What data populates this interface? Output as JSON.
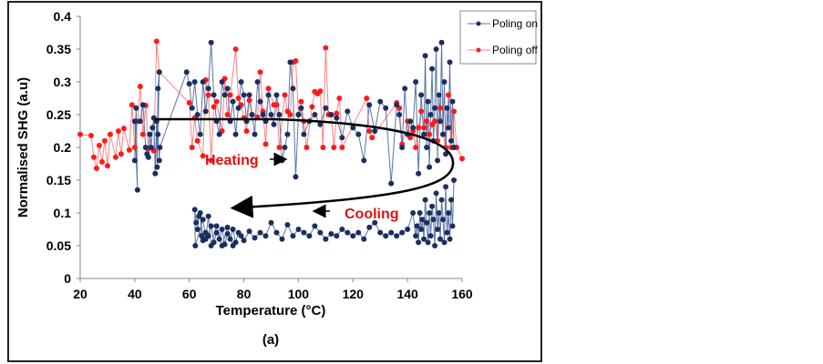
{
  "chart_data": {
    "type": "line",
    "title": "",
    "caption": "(a)",
    "xlabel": "Temperature (°C)",
    "ylabel": "Normalised SHG (a.u)",
    "xlim": [
      20,
      160
    ],
    "ylim": [
      0,
      0.4
    ],
    "xticks": [
      "20",
      "40",
      "60",
      "80",
      "100",
      "120",
      "140",
      "160"
    ],
    "yticks": [
      "0",
      "0.05",
      "0.1",
      "0.15",
      "0.2",
      "0.25",
      "0.3",
      "0.35",
      "0.4"
    ],
    "grid": false,
    "legend_position": "top-right",
    "annotations": {
      "heating": "Heating",
      "cooling": "Cooling"
    },
    "series": [
      {
        "name": "Poling on",
        "color": "#1b2f5e",
        "line_color": "#5a74a8",
        "heating": [
          [
            40,
            0.18
          ],
          [
            40.5,
            0.26
          ],
          [
            41,
            0.135
          ],
          [
            40,
            0.24
          ],
          [
            42,
            0.24
          ],
          [
            43,
            0.265
          ],
          [
            44,
            0.2
          ],
          [
            44.5,
            0.19
          ],
          [
            45,
            0.185
          ],
          [
            45.5,
            0.22
          ],
          [
            46,
            0.2
          ],
          [
            46.5,
            0.23
          ],
          [
            47,
            0.245
          ],
          [
            47.5,
            0.16
          ],
          [
            48,
            0.24
          ],
          [
            48.2,
            0.17
          ],
          [
            48.5,
            0.29
          ],
          [
            49,
            0.315
          ],
          [
            48.5,
            0.22
          ],
          [
            49,
            0.18
          ],
          [
            49.2,
            0.2
          ],
          [
            59,
            0.315
          ],
          [
            60,
            0.297
          ],
          [
            61,
            0.26
          ],
          [
            62,
            0.3
          ],
          [
            63,
            0.25
          ],
          [
            64,
            0.22
          ],
          [
            65,
            0.3
          ],
          [
            66,
            0.255
          ],
          [
            67,
            0.29
          ],
          [
            68,
            0.36
          ],
          [
            69,
            0.28
          ],
          [
            70,
            0.24
          ],
          [
            71,
            0.22
          ],
          [
            72,
            0.3
          ],
          [
            73,
            0.28
          ],
          [
            74,
            0.29
          ],
          [
            75,
            0.24
          ],
          [
            76,
            0.27
          ],
          [
            77,
            0.22
          ],
          [
            78,
            0.26
          ],
          [
            79,
            0.3
          ],
          [
            80,
            0.28
          ],
          [
            81,
            0.24
          ],
          [
            82,
            0.28
          ],
          [
            83,
            0.25
          ],
          [
            84,
            0.22
          ],
          [
            85,
            0.3
          ],
          [
            86,
            0.27
          ],
          [
            87,
            0.25
          ],
          [
            88,
            0.24
          ],
          [
            89,
            0.28
          ],
          [
            90,
            0.25
          ],
          [
            91,
            0.235
          ],
          [
            92,
            0.28
          ],
          [
            93,
            0.25
          ],
          [
            94,
            0.18
          ],
          [
            95,
            0.2
          ],
          [
            96,
            0.22
          ],
          [
            97,
            0.33
          ],
          [
            98,
            0.29
          ],
          [
            99,
            0.155
          ],
          [
            100,
            0.25
          ],
          [
            101,
            0.26
          ],
          [
            102,
            0.22
          ],
          [
            104,
            0.24
          ],
          [
            106,
            0.25
          ],
          [
            108,
            0.235
          ],
          [
            110,
            0.26
          ],
          [
            112,
            0.25
          ],
          [
            114,
            0.245
          ],
          [
            116,
            0.215
          ],
          [
            118,
            0.255
          ],
          [
            120,
            0.23
          ],
          [
            122,
            0.22
          ],
          [
            124,
            0.18
          ],
          [
            126,
            0.265
          ],
          [
            128,
            0.225
          ],
          [
            130,
            0.27
          ],
          [
            132,
            0.26
          ],
          [
            134,
            0.145
          ],
          [
            136,
            0.265
          ],
          [
            137,
            0.25
          ],
          [
            138,
            0.2
          ],
          [
            139,
            0.29
          ],
          [
            140,
            0.22
          ],
          [
            141,
            0.24
          ],
          [
            142,
            0.23
          ],
          [
            143,
            0.3
          ],
          [
            144,
            0.16
          ],
          [
            145,
            0.28
          ],
          [
            146,
            0.22
          ],
          [
            146.5,
            0.34
          ],
          [
            147,
            0.2
          ],
          [
            147.5,
            0.27
          ],
          [
            148,
            0.17
          ],
          [
            148.5,
            0.25
          ],
          [
            149,
            0.32
          ],
          [
            149.5,
            0.21
          ],
          [
            150,
            0.26
          ],
          [
            150.5,
            0.35
          ],
          [
            151,
            0.18
          ],
          [
            151.5,
            0.28
          ],
          [
            152,
            0.24
          ],
          [
            152.5,
            0.36
          ],
          [
            153,
            0.22
          ],
          [
            153.5,
            0.3
          ],
          [
            154,
            0.19
          ],
          [
            154.5,
            0.26
          ],
          [
            155,
            0.23
          ],
          [
            155.5,
            0.33
          ],
          [
            156,
            0.21
          ],
          [
            156.5,
            0.27
          ],
          [
            157,
            0.2
          ]
        ],
        "cooling": [
          [
            157,
            0.15
          ],
          [
            156.5,
            0.08
          ],
          [
            156,
            0.12
          ],
          [
            155.5,
            0.06
          ],
          [
            155,
            0.1
          ],
          [
            154.5,
            0.07
          ],
          [
            154,
            0.14
          ],
          [
            153.5,
            0.055
          ],
          [
            153,
            0.09
          ],
          [
            152.5,
            0.12
          ],
          [
            152,
            0.06
          ],
          [
            151.5,
            0.1
          ],
          [
            151,
            0.075
          ],
          [
            150.5,
            0.13
          ],
          [
            150,
            0.05
          ],
          [
            149.5,
            0.09
          ],
          [
            149,
            0.11
          ],
          [
            148.5,
            0.065
          ],
          [
            148,
            0.1
          ],
          [
            147.5,
            0.055
          ],
          [
            147,
            0.085
          ],
          [
            146.5,
            0.12
          ],
          [
            146,
            0.06
          ],
          [
            145.5,
            0.09
          ],
          [
            145,
            0.075
          ],
          [
            144.5,
            0.1
          ],
          [
            144,
            0.055
          ],
          [
            143.5,
            0.08
          ],
          [
            143,
            0.065
          ],
          [
            142,
            0.1
          ],
          [
            140,
            0.075
          ],
          [
            138,
            0.07
          ],
          [
            136,
            0.065
          ],
          [
            134,
            0.07
          ],
          [
            132,
            0.065
          ],
          [
            130,
            0.07
          ],
          [
            128,
            0.085
          ],
          [
            126,
            0.078
          ],
          [
            124,
            0.06
          ],
          [
            122,
            0.07
          ],
          [
            120,
            0.065
          ],
          [
            118,
            0.07
          ],
          [
            116,
            0.075
          ],
          [
            114,
            0.065
          ],
          [
            112,
            0.068
          ],
          [
            110,
            0.06
          ],
          [
            108,
            0.07
          ],
          [
            106,
            0.08
          ],
          [
            104,
            0.065
          ],
          [
            102,
            0.07
          ],
          [
            100,
            0.075
          ],
          [
            98,
            0.065
          ],
          [
            96,
            0.082
          ],
          [
            94,
            0.06
          ],
          [
            92,
            0.07
          ],
          [
            90,
            0.085
          ],
          [
            88,
            0.065
          ],
          [
            86,
            0.07
          ],
          [
            84,
            0.062
          ],
          [
            82,
            0.072
          ],
          [
            80,
            0.058
          ],
          [
            79,
            0.065
          ],
          [
            78,
            0.07
          ],
          [
            77,
            0.055
          ],
          [
            76,
            0.075
          ],
          [
            75,
            0.06
          ],
          [
            74,
            0.068
          ],
          [
            73,
            0.052
          ],
          [
            72,
            0.075
          ],
          [
            71,
            0.06
          ],
          [
            70,
            0.07
          ],
          [
            69,
            0.055
          ],
          [
            68,
            0.08
          ],
          [
            67,
            0.065
          ],
          [
            66,
            0.07
          ],
          [
            65,
            0.058
          ],
          [
            64,
            0.1
          ],
          [
            64.5,
            0.065
          ],
          [
            63,
            0.075
          ],
          [
            63.5,
            0.095
          ],
          [
            62.5,
            0.085
          ],
          [
            62,
            0.105
          ],
          [
            62.2,
            0.05
          ],
          [
            65,
            0.09
          ],
          [
            66,
            0.06
          ],
          [
            67,
            0.095
          ],
          [
            68,
            0.05
          ],
          [
            70,
            0.08
          ],
          [
            72,
            0.05
          ],
          [
            74,
            0.078
          ],
          [
            76,
            0.05
          ]
        ]
      },
      {
        "name": "Poling off",
        "color": "#ff1a1a",
        "line_color": "#ff8080",
        "points": [
          [
            20,
            0.22
          ],
          [
            24,
            0.218
          ],
          [
            25,
            0.185
          ],
          [
            26,
            0.168
          ],
          [
            27,
            0.203
          ],
          [
            28,
            0.178
          ],
          [
            29,
            0.21
          ],
          [
            30,
            0.172
          ],
          [
            31,
            0.22
          ],
          [
            33,
            0.185
          ],
          [
            34,
            0.225
          ],
          [
            35,
            0.19
          ],
          [
            36,
            0.229
          ],
          [
            38,
            0.196
          ],
          [
            39,
            0.265
          ],
          [
            40,
            0.2
          ],
          [
            41,
            0.24
          ],
          [
            42,
            0.293
          ],
          [
            43,
            0.22
          ],
          [
            44,
            0.264
          ],
          [
            45,
            0.198
          ],
          [
            47,
            0.195
          ],
          [
            48,
            0.362
          ],
          [
            49,
            0.315
          ],
          [
            60,
            0.268
          ],
          [
            61,
            0.2
          ],
          [
            62,
            0.245
          ],
          [
            63,
            0.21
          ],
          [
            65,
            0.187
          ],
          [
            66,
            0.303
          ],
          [
            67,
            0.28
          ],
          [
            68,
            0.18
          ],
          [
            69,
            0.262
          ],
          [
            70,
            0.27
          ],
          [
            72,
            0.225
          ],
          [
            73,
            0.305
          ],
          [
            74,
            0.25
          ],
          [
            75,
            0.28
          ],
          [
            77,
            0.35
          ],
          [
            78,
            0.275
          ],
          [
            79,
            0.265
          ],
          [
            80,
            0.245
          ],
          [
            81,
            0.225
          ],
          [
            82,
            0.272
          ],
          [
            83,
            0.25
          ],
          [
            85,
            0.246
          ],
          [
            86,
            0.315
          ],
          [
            87,
            0.255
          ],
          [
            88,
            0.205
          ],
          [
            89,
            0.29
          ],
          [
            91,
            0.265
          ],
          [
            92,
            0.265
          ],
          [
            93,
            0.2
          ],
          [
            95,
            0.28
          ],
          [
            96,
            0.255
          ],
          [
            97,
            0.25
          ],
          [
            98,
            0.33
          ],
          [
            99,
            0.332
          ],
          [
            100,
            0.25
          ],
          [
            101,
            0.27
          ],
          [
            102,
            0.24
          ],
          [
            103,
            0.2
          ],
          [
            105,
            0.262
          ],
          [
            106,
            0.285
          ],
          [
            107,
            0.282
          ],
          [
            108,
            0.286
          ],
          [
            109,
            0.2
          ],
          [
            110,
            0.352
          ],
          [
            111,
            0.25
          ],
          [
            112,
            0.25
          ],
          [
            113,
            0.2
          ],
          [
            114,
            0.252
          ],
          [
            115,
            0.275
          ],
          [
            116,
            0.2
          ],
          [
            125,
            0.275
          ],
          [
            126,
            0.225
          ],
          [
            127,
            0.215
          ],
          [
            136,
            0.268
          ],
          [
            137,
            0.26
          ],
          [
            138,
            0.205
          ],
          [
            140,
            0.24
          ],
          [
            141,
            0.215
          ],
          [
            142,
            0.225
          ],
          [
            143,
            0.2
          ],
          [
            144,
            0.23
          ],
          [
            145,
            0.255
          ],
          [
            146,
            0.23
          ],
          [
            147,
            0.24
          ],
          [
            148,
            0.22
          ],
          [
            149,
            0.235
          ],
          [
            150,
            0.24
          ],
          [
            151,
            0.21
          ],
          [
            152,
            0.26
          ],
          [
            153,
            0.22
          ],
          [
            154,
            0.2
          ],
          [
            155,
            0.28
          ],
          [
            156,
            0.2
          ],
          [
            157,
            0.255
          ],
          [
            158,
            0.2
          ],
          [
            160,
            0.183
          ]
        ]
      }
    ]
  }
}
